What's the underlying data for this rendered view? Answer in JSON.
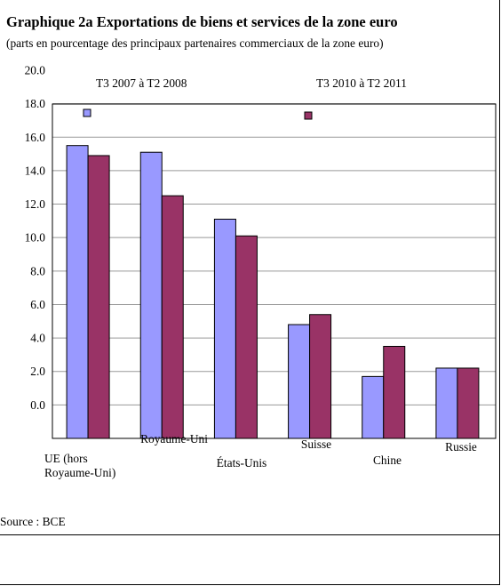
{
  "title": "Graphique 2a Exportations de biens et services de la zone euro",
  "subtitle": "(parts en pourcentage des principaux partenaires commerciaux de la zone euro)",
  "source": "Source : BCE",
  "colors": {
    "series1": "#9999ff",
    "series2": "#993366",
    "grid": "#999999"
  },
  "chart_data": {
    "type": "bar",
    "categories": [
      "UE (hors Royaume-Uni)",
      "Royaume-Uni",
      "États-Unis",
      "Suisse",
      "Chine",
      "Russie"
    ],
    "series": [
      {
        "name": "T3  2007 à T2  2008",
        "values": [
          15.5,
          15.1,
          11.1,
          4.8,
          1.7,
          2.2
        ]
      },
      {
        "name": "T3 2010 à T2  2011",
        "values": [
          14.9,
          12.5,
          10.1,
          5.4,
          3.5,
          2.2
        ]
      }
    ],
    "yticks": [
      "0.0",
      "2.0",
      "4.0",
      "6.0",
      "8.0",
      "10.0",
      "12.0",
      "14.0",
      "16.0",
      "18.0",
      "20.0"
    ],
    "ylim": [
      -2,
      20
    ],
    "grid": true,
    "legend_position": "top"
  }
}
